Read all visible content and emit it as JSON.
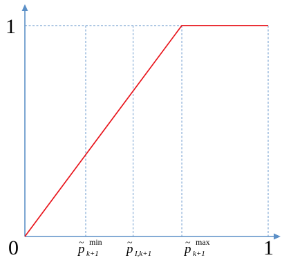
{
  "chart_data": {
    "type": "line",
    "title": "",
    "xlabel": "",
    "ylabel": "",
    "xlim": [
      0,
      1
    ],
    "ylim": [
      0,
      1
    ],
    "series": [
      {
        "x": [
          0,
          0.645,
          1
        ],
        "y": [
          0,
          1,
          1
        ],
        "color": "#e8141b"
      }
    ],
    "guides_x": [
      0.25,
      0.445,
      0.645,
      1
    ],
    "guide_y": 1,
    "colors": {
      "axis": "#5b8fc7",
      "curve": "#e8141b"
    },
    "labels": {
      "origin": "0",
      "x_end": "1",
      "y_top": "1",
      "p_min": {
        "tilde": "~",
        "main": "p",
        "sup": "min",
        "sub": "k+1"
      },
      "p_mid": {
        "tilde": "~",
        "main": "p",
        "sub": "I,k+1"
      },
      "p_max": {
        "tilde": "~",
        "main": "p",
        "sup": "max",
        "sub": "k+1"
      }
    }
  }
}
